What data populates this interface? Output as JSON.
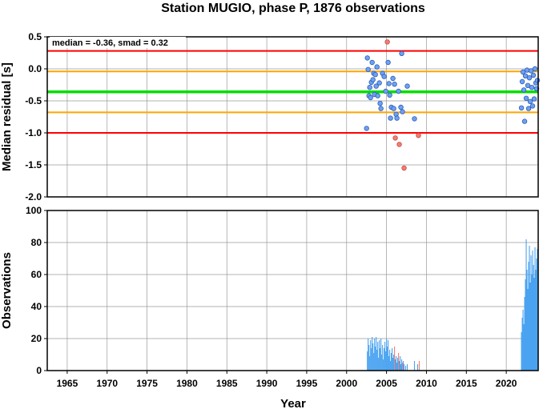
{
  "chart_data": [
    {
      "type": "scatter",
      "title": "Station MUGIO, phase P, 1876 observations",
      "ylabel": "Median residual [s]",
      "annotation": "median = -0.36, smad = 0.32",
      "xlim": [
        1962.5,
        2024
      ],
      "ylim": [
        -2.0,
        0.5
      ],
      "yticks": [
        0.5,
        0.0,
        -0.5,
        -1.0,
        -1.5,
        -2.0
      ],
      "ytick_labels": [
        "0.5",
        "0.0",
        "-0.5",
        "-1.0",
        "-1.5",
        "-2.0"
      ],
      "grid": true,
      "reference_lines": [
        {
          "value": 0.28,
          "color": "#ff0000"
        },
        {
          "value": -0.04,
          "color": "#ffa500"
        },
        {
          "value": -0.36,
          "color": "#00dd00"
        },
        {
          "value": -0.68,
          "color": "#ffa500"
        },
        {
          "value": -1.0,
          "color": "#ff0000"
        }
      ],
      "colors": {
        "inlier": "#6fa0f5",
        "outlier": "#f77b72"
      },
      "points": [
        {
          "x": 2002.6,
          "y": 0.17,
          "outlier": false
        },
        {
          "x": 2002.7,
          "y": -0.01,
          "outlier": false
        },
        {
          "x": 2002.9,
          "y": -0.29,
          "outlier": false
        },
        {
          "x": 2002.8,
          "y": -0.42,
          "outlier": false
        },
        {
          "x": 2003.0,
          "y": -0.45,
          "outlier": false
        },
        {
          "x": 2003.1,
          "y": -0.21,
          "outlier": false
        },
        {
          "x": 2003.2,
          "y": 0.1,
          "outlier": false
        },
        {
          "x": 2003.3,
          "y": -0.17,
          "outlier": false
        },
        {
          "x": 2003.4,
          "y": -0.07,
          "outlier": false
        },
        {
          "x": 2003.5,
          "y": -0.4,
          "outlier": false
        },
        {
          "x": 2003.6,
          "y": -0.09,
          "outlier": false
        },
        {
          "x": 2003.7,
          "y": -0.27,
          "outlier": false
        },
        {
          "x": 2003.8,
          "y": 0.03,
          "outlier": false
        },
        {
          "x": 2002.5,
          "y": -0.93,
          "outlier": false
        },
        {
          "x": 2003.9,
          "y": -0.42,
          "outlier": false
        },
        {
          "x": 2004.1,
          "y": -0.22,
          "outlier": false
        },
        {
          "x": 2004.2,
          "y": -0.54,
          "outlier": false
        },
        {
          "x": 2004.3,
          "y": -0.62,
          "outlier": false
        },
        {
          "x": 2004.5,
          "y": -0.07,
          "outlier": false
        },
        {
          "x": 2004.7,
          "y": -0.12,
          "outlier": false
        },
        {
          "x": 2004.9,
          "y": -0.35,
          "outlier": false
        },
        {
          "x": 2005.1,
          "y": 0.42,
          "outlier": true
        },
        {
          "x": 2005.2,
          "y": 0.1,
          "outlier": false
        },
        {
          "x": 2005.3,
          "y": -0.23,
          "outlier": false
        },
        {
          "x": 2005.4,
          "y": -0.41,
          "outlier": false
        },
        {
          "x": 2005.5,
          "y": -0.77,
          "outlier": false
        },
        {
          "x": 2005.6,
          "y": -0.6,
          "outlier": false
        },
        {
          "x": 2005.8,
          "y": -0.15,
          "outlier": false
        },
        {
          "x": 2005.9,
          "y": -0.62,
          "outlier": false
        },
        {
          "x": 2006.0,
          "y": -0.24,
          "outlier": false
        },
        {
          "x": 2006.1,
          "y": -1.08,
          "outlier": true
        },
        {
          "x": 2006.2,
          "y": -0.71,
          "outlier": false
        },
        {
          "x": 2006.3,
          "y": -0.77,
          "outlier": false
        },
        {
          "x": 2006.5,
          "y": -0.35,
          "outlier": false
        },
        {
          "x": 2006.6,
          "y": -1.18,
          "outlier": true
        },
        {
          "x": 2006.8,
          "y": -0.6,
          "outlier": false
        },
        {
          "x": 2006.9,
          "y": 0.24,
          "outlier": false
        },
        {
          "x": 2007.0,
          "y": -0.67,
          "outlier": false
        },
        {
          "x": 2007.2,
          "y": -1.55,
          "outlier": true
        },
        {
          "x": 2007.6,
          "y": -0.27,
          "outlier": false
        },
        {
          "x": 2008.5,
          "y": -0.78,
          "outlier": false
        },
        {
          "x": 2009.0,
          "y": -1.04,
          "outlier": true
        },
        {
          "x": 2021.9,
          "y": -0.61,
          "outlier": false
        },
        {
          "x": 2022.0,
          "y": -0.2,
          "outlier": false
        },
        {
          "x": 2022.1,
          "y": -0.05,
          "outlier": false
        },
        {
          "x": 2022.2,
          "y": -0.33,
          "outlier": false
        },
        {
          "x": 2022.3,
          "y": -0.82,
          "outlier": false
        },
        {
          "x": 2022.4,
          "y": -0.11,
          "outlier": false
        },
        {
          "x": 2022.5,
          "y": -0.46,
          "outlier": false
        },
        {
          "x": 2022.6,
          "y": -0.02,
          "outlier": false
        },
        {
          "x": 2022.7,
          "y": -0.26,
          "outlier": false
        },
        {
          "x": 2022.8,
          "y": -0.62,
          "outlier": false
        },
        {
          "x": 2022.9,
          "y": -0.14,
          "outlier": false
        },
        {
          "x": 2023.0,
          "y": -0.51,
          "outlier": false
        },
        {
          "x": 2023.1,
          "y": -0.03,
          "outlier": false
        },
        {
          "x": 2023.2,
          "y": -0.29,
          "outlier": false
        },
        {
          "x": 2023.3,
          "y": -0.58,
          "outlier": false
        },
        {
          "x": 2023.4,
          "y": -0.1,
          "outlier": false
        },
        {
          "x": 2023.5,
          "y": -0.47,
          "outlier": false
        },
        {
          "x": 2023.6,
          "y": 0.0,
          "outlier": false
        },
        {
          "x": 2023.7,
          "y": -0.22,
          "outlier": false
        },
        {
          "x": 2023.8,
          "y": -0.31,
          "outlier": false
        },
        {
          "x": 2023.9,
          "y": -0.18,
          "outlier": false
        }
      ]
    },
    {
      "type": "bar",
      "xlabel": "Year",
      "ylabel": "Observations",
      "xlim": [
        1962.5,
        2024
      ],
      "ylim": [
        0,
        100
      ],
      "xticks": [
        1965,
        1970,
        1975,
        1980,
        1985,
        1990,
        1995,
        2000,
        2005,
        2010,
        2015,
        2020
      ],
      "xtick_labels": [
        "1965",
        "1970",
        "1975",
        "1980",
        "1985",
        "1990",
        "1995",
        "2000",
        "2005",
        "2010",
        "2015",
        "2020"
      ],
      "yticks": [
        0,
        20,
        40,
        60,
        80,
        100
      ],
      "ytick_labels": [
        "0",
        "20",
        "40",
        "60",
        "80",
        "100"
      ],
      "grid": true,
      "colors": {
        "inlier": "#4aa3f0",
        "outlier": "#f77b72"
      },
      "bars": [
        {
          "x": 2002.6,
          "value": 12,
          "outlier": false
        },
        {
          "x": 2002.7,
          "value": 20,
          "outlier": false
        },
        {
          "x": 2002.8,
          "value": 16,
          "outlier": false
        },
        {
          "x": 2002.9,
          "value": 9,
          "outlier": false
        },
        {
          "x": 2003.0,
          "value": 19,
          "outlier": false
        },
        {
          "x": 2003.1,
          "value": 14,
          "outlier": false
        },
        {
          "x": 2003.2,
          "value": 21,
          "outlier": false
        },
        {
          "x": 2003.3,
          "value": 17,
          "outlier": false
        },
        {
          "x": 2003.4,
          "value": 11,
          "outlier": false
        },
        {
          "x": 2003.5,
          "value": 20,
          "outlier": false
        },
        {
          "x": 2003.6,
          "value": 15,
          "outlier": false
        },
        {
          "x": 2003.7,
          "value": 21,
          "outlier": false
        },
        {
          "x": 2003.8,
          "value": 13,
          "outlier": false
        },
        {
          "x": 2003.9,
          "value": 18,
          "outlier": false
        },
        {
          "x": 2004.0,
          "value": 8,
          "outlier": false
        },
        {
          "x": 2004.1,
          "value": 19,
          "outlier": false
        },
        {
          "x": 2004.2,
          "value": 14,
          "outlier": false
        },
        {
          "x": 2004.3,
          "value": 20,
          "outlier": false
        },
        {
          "x": 2004.4,
          "value": 10,
          "outlier": false
        },
        {
          "x": 2004.5,
          "value": 16,
          "outlier": false
        },
        {
          "x": 2004.6,
          "value": 7,
          "outlier": false
        },
        {
          "x": 2004.7,
          "value": 14,
          "outlier": false
        },
        {
          "x": 2004.8,
          "value": 18,
          "outlier": false
        },
        {
          "x": 2004.9,
          "value": 12,
          "outlier": false
        },
        {
          "x": 2005.0,
          "value": 20,
          "outlier": false
        },
        {
          "x": 2005.1,
          "value": 15,
          "outlier": false
        },
        {
          "x": 2005.2,
          "value": 19,
          "outlier": false
        },
        {
          "x": 2005.3,
          "value": 9,
          "outlier": false
        },
        {
          "x": 2005.4,
          "value": 13,
          "outlier": false
        },
        {
          "x": 2005.5,
          "value": 6,
          "outlier": false
        },
        {
          "x": 2005.6,
          "value": 11,
          "outlier": false
        },
        {
          "x": 2005.7,
          "value": 14,
          "outlier": false
        },
        {
          "x": 2005.8,
          "value": 8,
          "outlier": false
        },
        {
          "x": 2005.9,
          "value": 10,
          "outlier": false
        },
        {
          "x": 2006.0,
          "value": 15,
          "outlier": true
        },
        {
          "x": 2006.1,
          "value": 7,
          "outlier": false
        },
        {
          "x": 2006.2,
          "value": 9,
          "outlier": false
        },
        {
          "x": 2006.3,
          "value": 5,
          "outlier": false
        },
        {
          "x": 2006.4,
          "value": 8,
          "outlier": false
        },
        {
          "x": 2006.5,
          "value": 11,
          "outlier": true
        },
        {
          "x": 2006.6,
          "value": 6,
          "outlier": false
        },
        {
          "x": 2006.7,
          "value": 9,
          "outlier": false
        },
        {
          "x": 2006.8,
          "value": 4,
          "outlier": false
        },
        {
          "x": 2006.9,
          "value": 7,
          "outlier": false
        },
        {
          "x": 2007.0,
          "value": 5,
          "outlier": true
        },
        {
          "x": 2007.1,
          "value": 6,
          "outlier": false
        },
        {
          "x": 2007.2,
          "value": 4,
          "outlier": false
        },
        {
          "x": 2007.4,
          "value": 3,
          "outlier": false
        },
        {
          "x": 2007.6,
          "value": 4,
          "outlier": false
        },
        {
          "x": 2008.5,
          "value": 6,
          "outlier": false
        },
        {
          "x": 2008.9,
          "value": 4,
          "outlier": false
        },
        {
          "x": 2009.1,
          "value": 6,
          "outlier": true
        },
        {
          "x": 2021.9,
          "value": 24,
          "outlier": false
        },
        {
          "x": 2022.0,
          "value": 33,
          "outlier": false
        },
        {
          "x": 2022.1,
          "value": 38,
          "outlier": false
        },
        {
          "x": 2022.2,
          "value": 29,
          "outlier": false
        },
        {
          "x": 2022.3,
          "value": 46,
          "outlier": false
        },
        {
          "x": 2022.4,
          "value": 57,
          "outlier": false
        },
        {
          "x": 2022.5,
          "value": 82,
          "outlier": false
        },
        {
          "x": 2022.6,
          "value": 63,
          "outlier": false
        },
        {
          "x": 2022.7,
          "value": 51,
          "outlier": false
        },
        {
          "x": 2022.8,
          "value": 68,
          "outlier": false
        },
        {
          "x": 2022.9,
          "value": 78,
          "outlier": false
        },
        {
          "x": 2023.0,
          "value": 55,
          "outlier": false
        },
        {
          "x": 2023.1,
          "value": 72,
          "outlier": false
        },
        {
          "x": 2023.2,
          "value": 60,
          "outlier": false
        },
        {
          "x": 2023.3,
          "value": 75,
          "outlier": false
        },
        {
          "x": 2023.4,
          "value": 66,
          "outlier": false
        },
        {
          "x": 2023.5,
          "value": 58,
          "outlier": false
        },
        {
          "x": 2023.6,
          "value": 77,
          "outlier": false
        },
        {
          "x": 2023.7,
          "value": 63,
          "outlier": false
        },
        {
          "x": 2023.8,
          "value": 70,
          "outlier": false
        },
        {
          "x": 2023.9,
          "value": 76,
          "outlier": false
        }
      ]
    }
  ]
}
